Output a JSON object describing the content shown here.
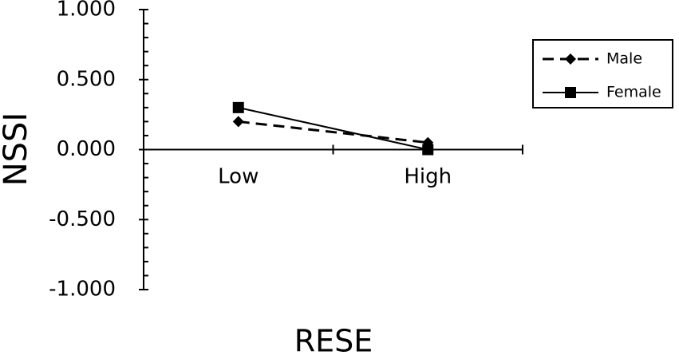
{
  "chart_data": {
    "type": "line",
    "y_label": "NSSI",
    "x_label": "RESE",
    "categories": [
      "Low",
      "High"
    ],
    "series": [
      {
        "name": "Male",
        "color": "#000000",
        "line_style": "dashed",
        "marker": "diamond",
        "values": [
          0.2,
          0.05
        ]
      },
      {
        "name": "Female",
        "color": "#000000",
        "line_style": "solid",
        "marker": "square",
        "values": [
          0.3,
          0.0
        ]
      }
    ],
    "ylim": [
      -1,
      1
    ],
    "yticks": [
      {
        "value": -1,
        "label": "-1.000"
      },
      {
        "value": -0.5,
        "label": "-0.500"
      },
      {
        "value": 0,
        "label": "0.000"
      },
      {
        "value": 0.5,
        "label": "0.500"
      },
      {
        "value": 1,
        "label": "1.000"
      }
    ],
    "yminor_ticks": [
      -0.9,
      -0.8,
      -0.7,
      -0.6,
      -0.4,
      -0.3,
      -0.2,
      -0.1,
      0.1,
      0.2,
      0.3,
      0.4,
      0.6,
      0.7,
      0.8,
      0.9
    ],
    "grid": false,
    "legend": "upper right"
  }
}
